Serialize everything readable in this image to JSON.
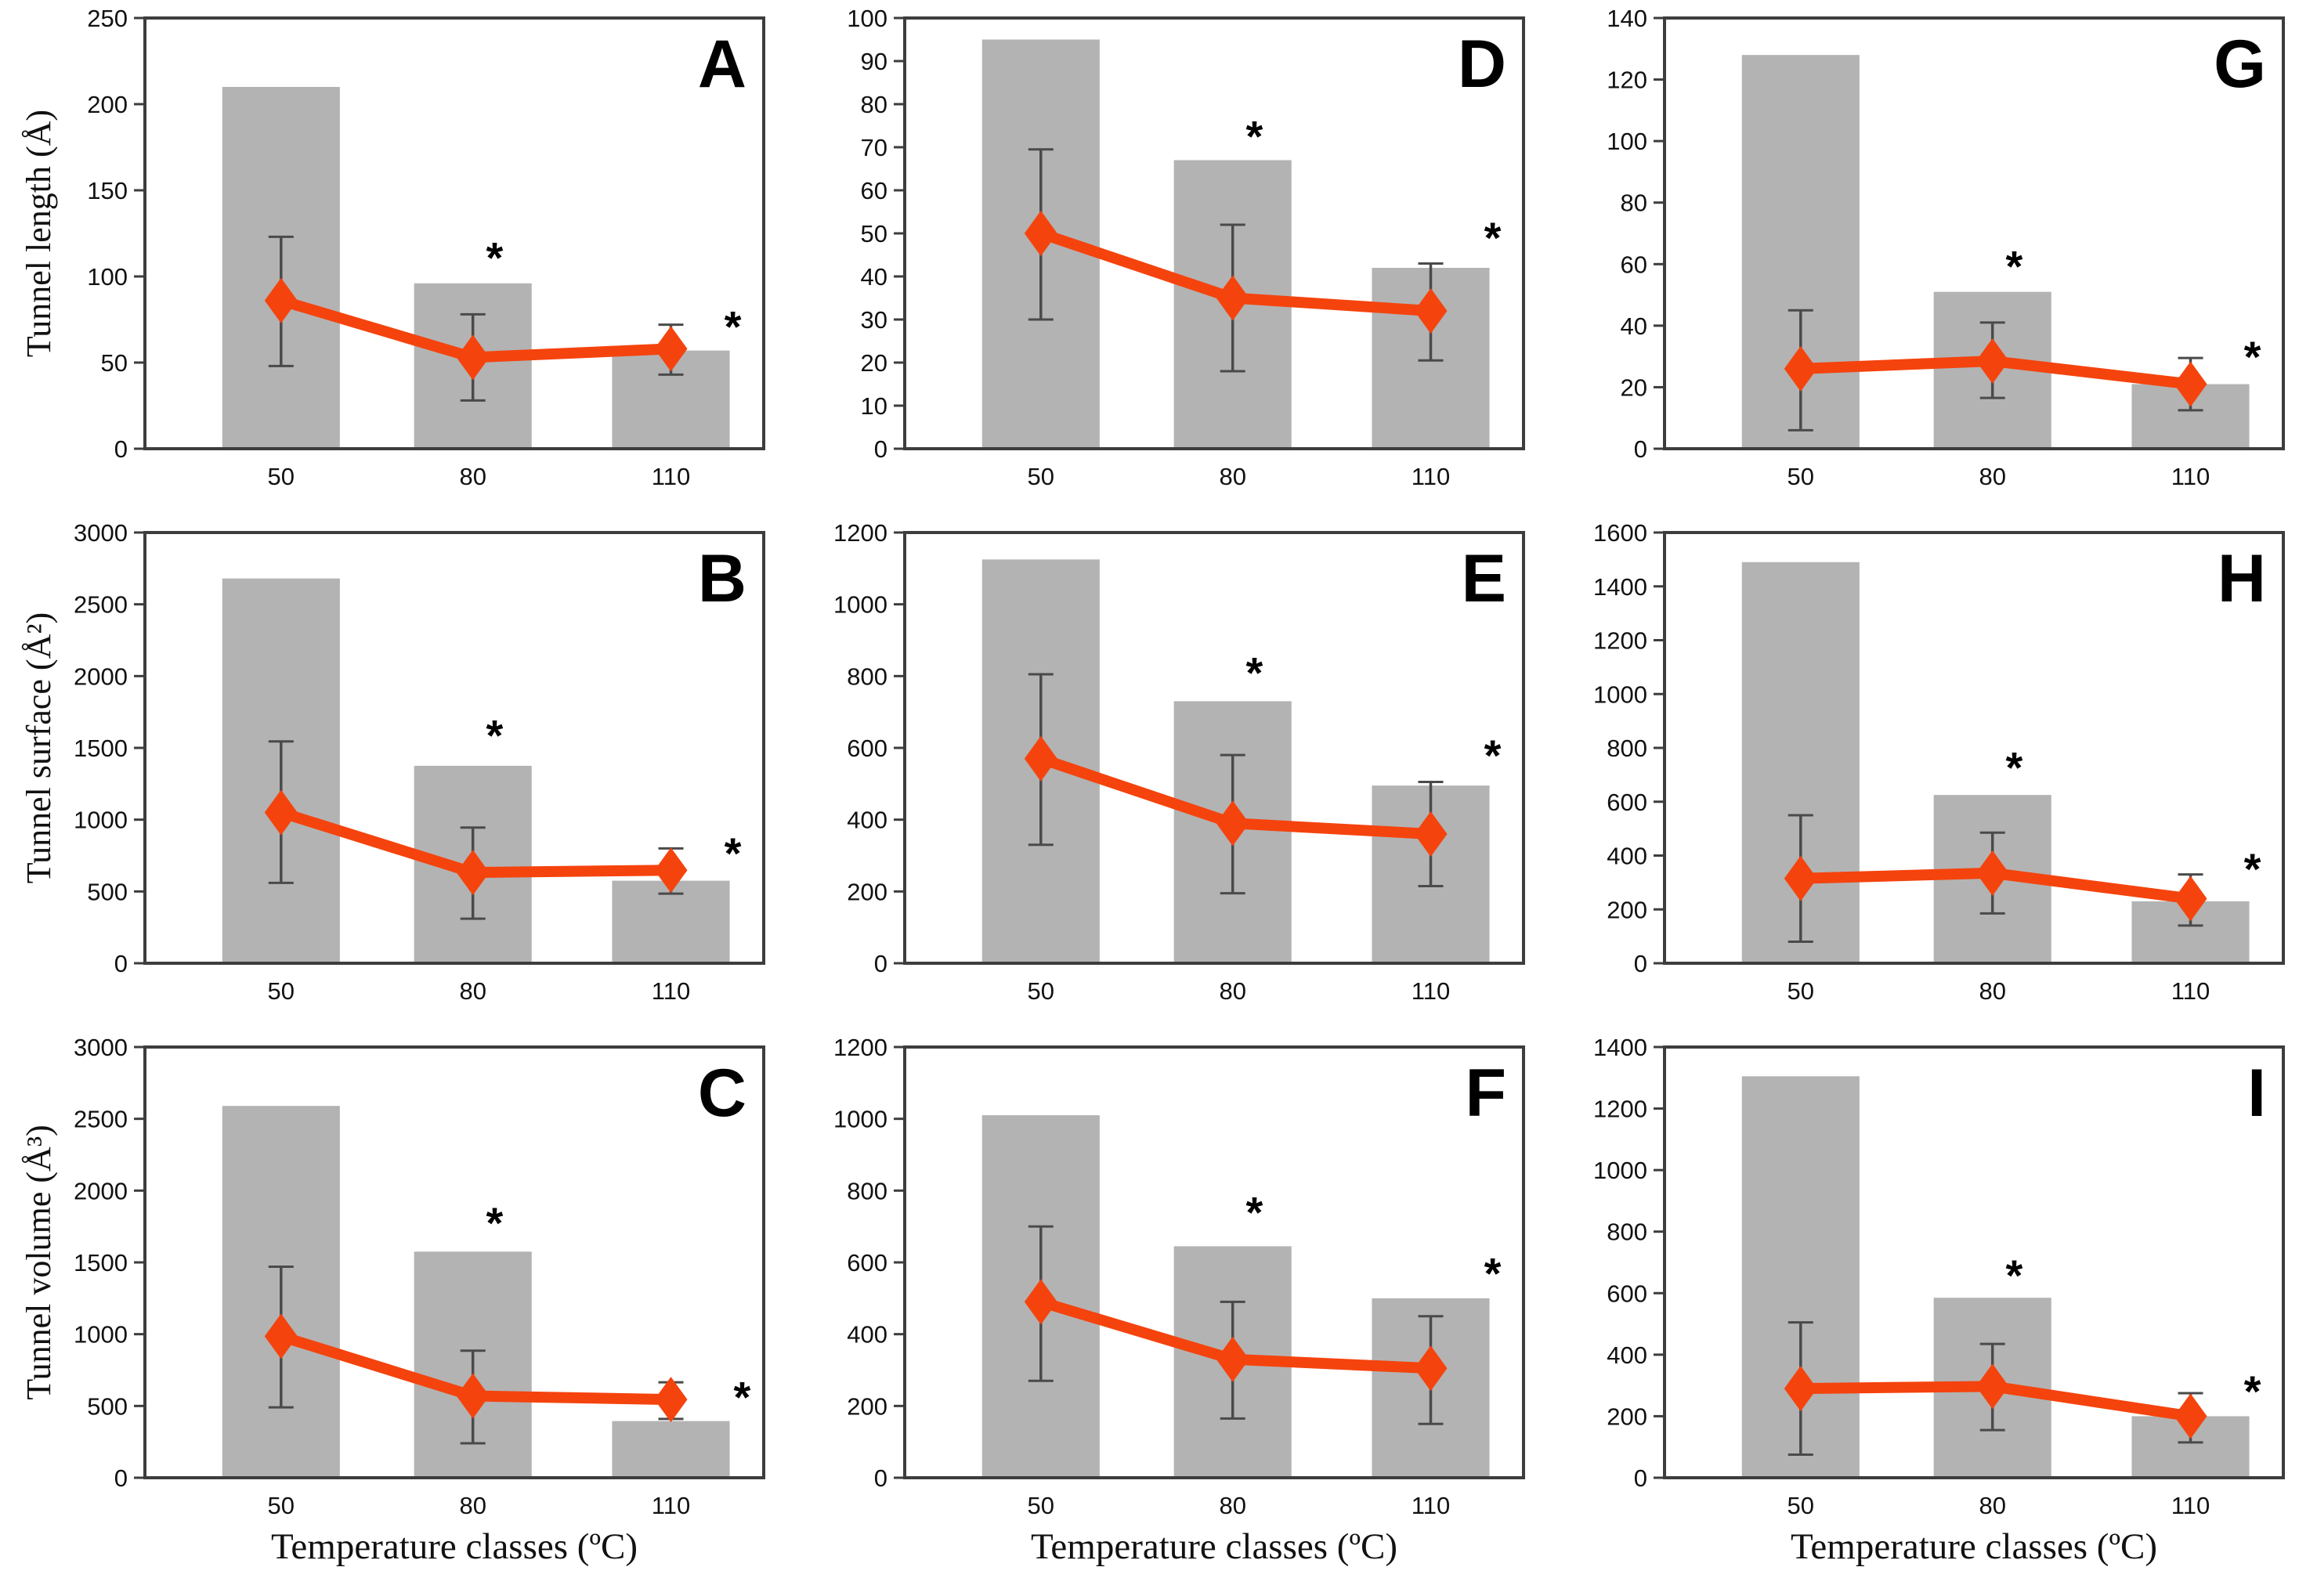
{
  "figure": {
    "background": "#ffffff",
    "x_axis_title": "Temperature classes (ºC)",
    "row_labels": [
      "Tunnel length (Å)",
      "Tunnel surface (Å²)",
      "Tunnel volume (Å³)"
    ],
    "categories": [
      "50",
      "80",
      "110"
    ],
    "significance_marker": "*",
    "colors": {
      "bar": "#b3b3b3",
      "line": "#f5430d",
      "error": "#4a4a4a",
      "frame": "#3d3d3d",
      "text": "#111111",
      "marker_text": "#000000"
    }
  },
  "chart_data": [
    {
      "panel": "A",
      "type": "bar",
      "ylabel": "Tunnel length (Å)",
      "xlabel": "Temperature classes (ºC)",
      "categories": [
        "50",
        "80",
        "110"
      ],
      "ylim": [
        0,
        250
      ],
      "ystep": 50,
      "bar_values": [
        210,
        96,
        57
      ],
      "line_series": {
        "name": "mean-with-sd",
        "values": [
          86,
          53,
          58
        ],
        "err_low": [
          48,
          28,
          43
        ],
        "err_high": [
          123,
          78,
          72
        ]
      },
      "asterisks": [
        {
          "category_index": 1,
          "y": 112,
          "dx": 0.035
        },
        {
          "category_index": 2,
          "y": 72,
          "dx": 0.1
        }
      ]
    },
    {
      "panel": "B",
      "type": "bar",
      "ylabel": "Tunnel surface (Å²)",
      "xlabel": "Temperature classes (ºC)",
      "categories": [
        "50",
        "80",
        "110"
      ],
      "ylim": [
        0,
        3000
      ],
      "ystep": 500,
      "bar_values": [
        2680,
        1375,
        575
      ],
      "line_series": {
        "name": "mean-with-sd",
        "values": [
          1050,
          632,
          648
        ],
        "err_low": [
          560,
          310,
          485
        ],
        "err_high": [
          1545,
          945,
          800
        ]
      },
      "asterisks": [
        {
          "category_index": 1,
          "y": 1600,
          "dx": 0.035
        },
        {
          "category_index": 2,
          "y": 780,
          "dx": 0.1
        }
      ]
    },
    {
      "panel": "C",
      "type": "bar",
      "ylabel": "Tunnel volume (Å³)",
      "xlabel": "Temperature classes (ºC)",
      "categories": [
        "50",
        "80",
        "110"
      ],
      "ylim": [
        0,
        3000
      ],
      "ystep": 500,
      "bar_values": [
        2590,
        1575,
        395
      ],
      "line_series": {
        "name": "mean-with-sd",
        "values": [
          985,
          570,
          545
        ],
        "err_low": [
          490,
          240,
          410
        ],
        "err_high": [
          1470,
          885,
          665
        ]
      },
      "asterisks": [
        {
          "category_index": 1,
          "y": 1790,
          "dx": 0.035
        },
        {
          "category_index": 2,
          "y": 575,
          "dx": 0.115
        }
      ]
    },
    {
      "panel": "D",
      "type": "bar",
      "ylabel": "Tunnel length (Å)",
      "xlabel": "Temperature classes (ºC)",
      "categories": [
        "50",
        "80",
        "110"
      ],
      "ylim": [
        0,
        100
      ],
      "ystep": 10,
      "bar_values": [
        95,
        67,
        42
      ],
      "line_series": {
        "name": "mean-with-sd",
        "values": [
          50,
          35,
          32
        ],
        "err_low": [
          30,
          18,
          20.5
        ],
        "err_high": [
          69.5,
          52,
          43
        ]
      },
      "asterisks": [
        {
          "category_index": 1,
          "y": 73,
          "dx": 0.035
        },
        {
          "category_index": 2,
          "y": 49.5,
          "dx": 0.1
        }
      ]
    },
    {
      "panel": "E",
      "type": "bar",
      "ylabel": "Tunnel surface (Å²)",
      "xlabel": "Temperature classes (ºC)",
      "categories": [
        "50",
        "80",
        "110"
      ],
      "ylim": [
        0,
        1200
      ],
      "ystep": 200,
      "bar_values": [
        1125,
        730,
        495
      ],
      "line_series": {
        "name": "mean-with-sd",
        "values": [
          570,
          390,
          360
        ],
        "err_low": [
          330,
          195,
          215
        ],
        "err_high": [
          805,
          580,
          505
        ]
      },
      "asterisks": [
        {
          "category_index": 1,
          "y": 815,
          "dx": 0.035
        },
        {
          "category_index": 2,
          "y": 585,
          "dx": 0.1
        }
      ]
    },
    {
      "panel": "F",
      "type": "bar",
      "ylabel": "Tunnel volume (Å³)",
      "xlabel": "Temperature classes (ºC)",
      "categories": [
        "50",
        "80",
        "110"
      ],
      "ylim": [
        0,
        1200
      ],
      "ystep": 200,
      "bar_values": [
        1010,
        645,
        500
      ],
      "line_series": {
        "name": "mean-with-sd",
        "values": [
          490,
          330,
          305
        ],
        "err_low": [
          270,
          165,
          150
        ],
        "err_high": [
          700,
          490,
          450
        ]
      },
      "asterisks": [
        {
          "category_index": 1,
          "y": 745,
          "dx": 0.035
        },
        {
          "category_index": 2,
          "y": 575,
          "dx": 0.1
        }
      ]
    },
    {
      "panel": "G",
      "type": "bar",
      "ylabel": "Tunnel length (Å)",
      "xlabel": "Temperature classes (ºC)",
      "categories": [
        "50",
        "80",
        "110"
      ],
      "ylim": [
        0,
        140
      ],
      "ystep": 20,
      "bar_values": [
        128,
        51,
        21
      ],
      "line_series": {
        "name": "mean-with-sd",
        "values": [
          26,
          28.5,
          21
        ],
        "err_low": [
          6,
          16.5,
          12.5
        ],
        "err_high": [
          45,
          41,
          29.5
        ]
      },
      "asterisks": [
        {
          "category_index": 1,
          "y": 60,
          "dx": 0.035
        },
        {
          "category_index": 2,
          "y": 30.5,
          "dx": 0.1
        }
      ]
    },
    {
      "panel": "H",
      "type": "bar",
      "ylabel": "Tunnel surface (Å²)",
      "xlabel": "Temperature classes (ºC)",
      "categories": [
        "50",
        "80",
        "110"
      ],
      "ylim": [
        0,
        1600
      ],
      "ystep": 200,
      "bar_values": [
        1490,
        625,
        230
      ],
      "line_series": {
        "name": "mean-with-sd",
        "values": [
          315,
          335,
          240
        ],
        "err_low": [
          80,
          185,
          140
        ],
        "err_high": [
          550,
          485,
          330
        ]
      },
      "asterisks": [
        {
          "category_index": 1,
          "y": 735,
          "dx": 0.035
        },
        {
          "category_index": 2,
          "y": 358,
          "dx": 0.1
        }
      ]
    },
    {
      "panel": "I",
      "type": "bar",
      "ylabel": "Tunnel volume (Å³)",
      "xlabel": "Temperature classes (ºC)",
      "categories": [
        "50",
        "80",
        "110"
      ],
      "ylim": [
        0,
        1400
      ],
      "ystep": 200,
      "bar_values": [
        1305,
        585,
        200
      ],
      "line_series": {
        "name": "mean-with-sd",
        "values": [
          290,
          297,
          200
        ],
        "err_low": [
          75,
          155,
          115
        ],
        "err_high": [
          505,
          435,
          275
        ]
      },
      "asterisks": [
        {
          "category_index": 1,
          "y": 665,
          "dx": 0.035
        },
        {
          "category_index": 2,
          "y": 288,
          "dx": 0.1
        }
      ]
    }
  ]
}
